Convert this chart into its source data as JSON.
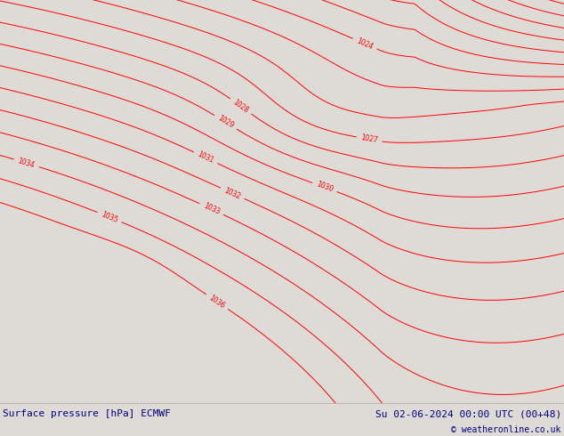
{
  "title_left": "Surface pressure [hPa] ECMWF",
  "title_right": "Su 02-06-2024 00:00 UTC (00+48)",
  "copyright": "© weatheronline.co.uk",
  "background_color": "#dedad6",
  "land_color": "#b8e8b0",
  "sea_color": "#dedad6",
  "contour_color": "#ff0000",
  "border_color": "#888888",
  "text_color_left": "#000080",
  "text_color_right": "#000080",
  "contour_linewidth": 0.7,
  "lon_min": -11.5,
  "lon_max": 5.5,
  "lat_min": 48.0,
  "lat_max": 61.5,
  "figsize": [
    6.34,
    4.9
  ],
  "dpi": 100,
  "bottom_bar_height": 0.075
}
